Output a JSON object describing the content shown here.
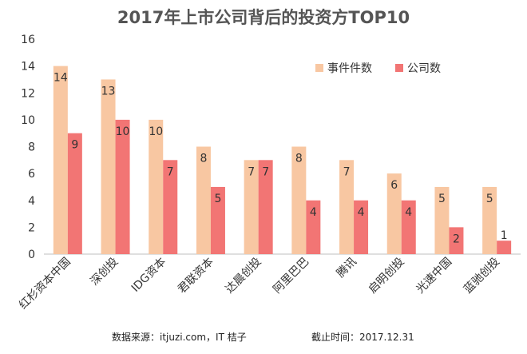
{
  "chart_data": {
    "type": "bar",
    "title": "2017年上市公司背后的投资方TOP10",
    "categories": [
      "红杉资本中国",
      "深创投",
      "IDG资本",
      "君联资本",
      "达晨创投",
      "阿里巴巴",
      "腾讯",
      "启明创投",
      "光速中国",
      "蓝驰创投"
    ],
    "series": [
      {
        "name": "事件件数",
        "values": [
          14,
          13,
          10,
          8,
          7,
          8,
          7,
          6,
          5,
          5
        ],
        "color": "#f8c7a2"
      },
      {
        "name": "公司数",
        "values": [
          9,
          10,
          7,
          5,
          7,
          4,
          4,
          4,
          2,
          1
        ],
        "color": "#f27574"
      }
    ],
    "ylim": [
      0,
      16
    ],
    "yticks": [
      0,
      2,
      4,
      6,
      8,
      10,
      12,
      14,
      16
    ],
    "xlabel": "",
    "ylabel": "",
    "grid": false,
    "legend_position": "top-right"
  },
  "footer": {
    "source": "数据来源：itjuzi.com，IT 桔子",
    "cutoff": "截止时间：2017.12.31"
  }
}
